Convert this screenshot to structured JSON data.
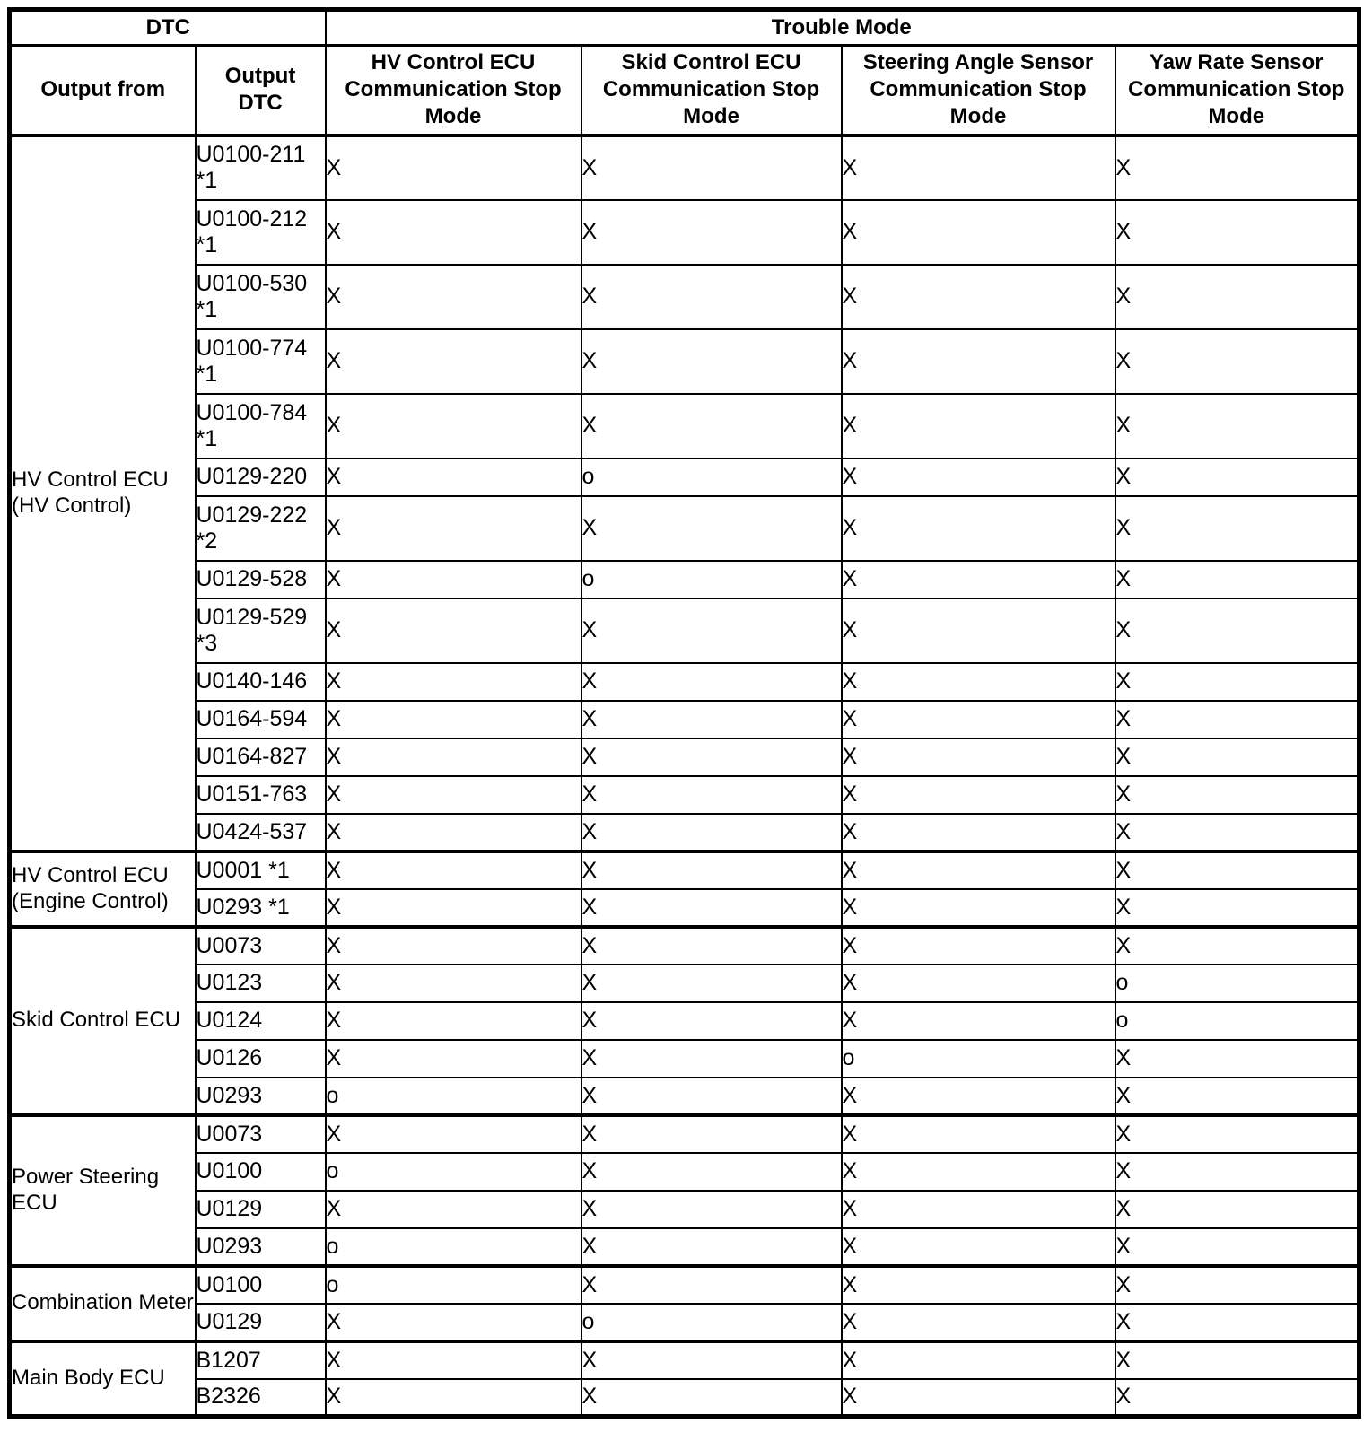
{
  "table": {
    "header": {
      "dtc_section": "DTC",
      "trouble_mode_section": "Trouble Mode",
      "output_from": "Output from",
      "output_dtc": "Output\nDTC",
      "modes": [
        "HV Control ECU\nCommunication Stop\nMode",
        "Skid Control ECU\nCommunication Stop\nMode",
        "Steering Angle Sensor\nCommunication Stop\nMode",
        "Yaw Rate Sensor\nCommunication Stop\nMode"
      ]
    },
    "groups": [
      {
        "output_from": "HV Control ECU (HV Control)",
        "rows": [
          {
            "dtc": "U0100-211\n*1",
            "tall": true,
            "values": [
              "X",
              "X",
              "X",
              "X"
            ]
          },
          {
            "dtc": "U0100-212\n*1",
            "tall": true,
            "values": [
              "X",
              "X",
              "X",
              "X"
            ]
          },
          {
            "dtc": "U0100-530\n*1",
            "tall": true,
            "values": [
              "X",
              "X",
              "X",
              "X"
            ]
          },
          {
            "dtc": "U0100-774\n*1",
            "tall": true,
            "values": [
              "X",
              "X",
              "X",
              "X"
            ]
          },
          {
            "dtc": "U0100-784\n*1",
            "tall": true,
            "values": [
              "X",
              "X",
              "X",
              "X"
            ]
          },
          {
            "dtc": "U0129-220",
            "tall": false,
            "values": [
              "X",
              "o",
              "X",
              "X"
            ]
          },
          {
            "dtc": "U0129-222\n*2",
            "tall": true,
            "values": [
              "X",
              "X",
              "X",
              "X"
            ]
          },
          {
            "dtc": "U0129-528",
            "tall": false,
            "values": [
              "X",
              "o",
              "X",
              "X"
            ]
          },
          {
            "dtc": "U0129-529\n*3",
            "tall": true,
            "values": [
              "X",
              "X",
              "X",
              "X"
            ]
          },
          {
            "dtc": "U0140-146",
            "tall": false,
            "values": [
              "X",
              "X",
              "X",
              "X"
            ]
          },
          {
            "dtc": "U0164-594",
            "tall": false,
            "values": [
              "X",
              "X",
              "X",
              "X"
            ]
          },
          {
            "dtc": "U0164-827",
            "tall": false,
            "values": [
              "X",
              "X",
              "X",
              "X"
            ]
          },
          {
            "dtc": "U0151-763",
            "tall": false,
            "values": [
              "X",
              "X",
              "X",
              "X"
            ]
          },
          {
            "dtc": "U0424-537",
            "tall": false,
            "values": [
              "X",
              "X",
              "X",
              "X"
            ]
          }
        ]
      },
      {
        "output_from": "HV Control ECU (Engine Control)",
        "rows": [
          {
            "dtc": "U0001 *1",
            "tall": false,
            "values": [
              "X",
              "X",
              "X",
              "X"
            ]
          },
          {
            "dtc": "U0293 *1",
            "tall": false,
            "values": [
              "X",
              "X",
              "X",
              "X"
            ]
          }
        ]
      },
      {
        "output_from": "Skid Control ECU",
        "rows": [
          {
            "dtc": "U0073",
            "tall": false,
            "values": [
              "X",
              "X",
              "X",
              "X"
            ]
          },
          {
            "dtc": "U0123",
            "tall": false,
            "values": [
              "X",
              "X",
              "X",
              "o"
            ]
          },
          {
            "dtc": "U0124",
            "tall": false,
            "values": [
              "X",
              "X",
              "X",
              "o"
            ]
          },
          {
            "dtc": "U0126",
            "tall": false,
            "values": [
              "X",
              "X",
              "o",
              "X"
            ]
          },
          {
            "dtc": "U0293",
            "tall": false,
            "values": [
              "o",
              "X",
              "X",
              "X"
            ]
          }
        ]
      },
      {
        "output_from": "Power Steering ECU",
        "rows": [
          {
            "dtc": "U0073",
            "tall": false,
            "values": [
              "X",
              "X",
              "X",
              "X"
            ]
          },
          {
            "dtc": "U0100",
            "tall": false,
            "values": [
              "o",
              "X",
              "X",
              "X"
            ]
          },
          {
            "dtc": "U0129",
            "tall": false,
            "values": [
              "X",
              "X",
              "X",
              "X"
            ]
          },
          {
            "dtc": "U0293",
            "tall": false,
            "values": [
              "o",
              "X",
              "X",
              "X"
            ]
          }
        ]
      },
      {
        "output_from": "Combination Meter",
        "rows": [
          {
            "dtc": "U0100",
            "tall": false,
            "values": [
              "o",
              "X",
              "X",
              "X"
            ]
          },
          {
            "dtc": "U0129",
            "tall": false,
            "values": [
              "X",
              "o",
              "X",
              "X"
            ]
          }
        ]
      },
      {
        "output_from": "Main Body ECU",
        "rows": [
          {
            "dtc": "B1207",
            "tall": false,
            "values": [
              "X",
              "X",
              "X",
              "X"
            ]
          },
          {
            "dtc": "B2326",
            "tall": false,
            "values": [
              "X",
              "X",
              "X",
              "X"
            ]
          }
        ]
      }
    ]
  }
}
